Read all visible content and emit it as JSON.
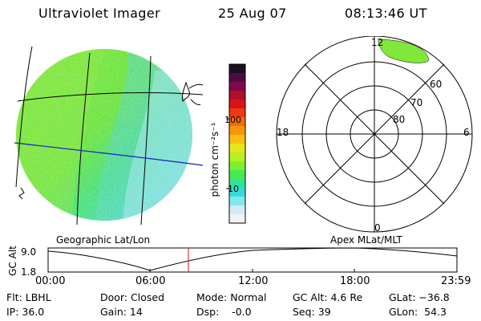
{
  "header": {
    "instrument": "Ultraviolet Imager",
    "date": "25 Aug 07",
    "time": "08:13:46 UT"
  },
  "colorbar": {
    "unit_label": "photon cm⁻²s⁻¹",
    "ticks": [
      "100",
      "10"
    ],
    "colors": [
      "#1a1020",
      "#4b0c46",
      "#7e0b48",
      "#b0102a",
      "#d8141a",
      "#ee3a10",
      "#f46a0a",
      "#f8960a",
      "#f8c010",
      "#e8e51c",
      "#b4f024",
      "#7ef032",
      "#48ea52",
      "#2ee49a",
      "#36dcd8",
      "#86e6ee",
      "#cfeef2",
      "#f2f2f2"
    ]
  },
  "geo_panel": {
    "label": "Geographic Lat/Lon"
  },
  "polar_panel": {
    "label": "Apex MLat/MLT",
    "mlt_labels": {
      "top": "12",
      "left": "18",
      "right": "6",
      "bottom": "0"
    },
    "lat_labels": [
      "60",
      "70",
      "80"
    ]
  },
  "altitude_plot": {
    "y_label": "GC Alt",
    "y_ticks": [
      "9.0",
      "1.8"
    ],
    "x_ticks": [
      "00:00",
      "06:00",
      "12:00",
      "18:00",
      "23:59"
    ],
    "marker_color": "#d01010"
  },
  "info": {
    "flt": "Flt: LBHL",
    "ip": "IP: 36.0",
    "door": "Door: Closed",
    "gain": "Gain: 14",
    "mode": "Mode: Normal",
    "dsp": "Dsp:    -0.0",
    "gc_alt": "GC Alt: 4.6 Re",
    "seq": "Seq: 39",
    "glat": "GLat: −36.8",
    "glon": "GLon:  54.3"
  }
}
